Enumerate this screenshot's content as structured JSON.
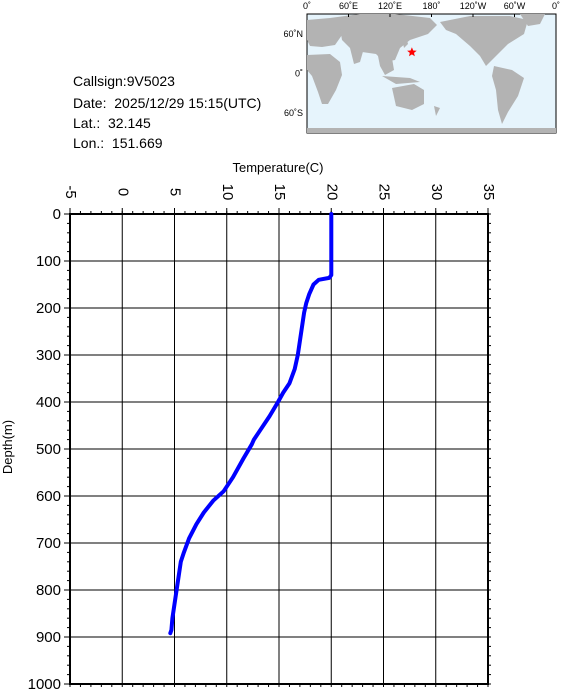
{
  "info": {
    "callsign": "Callsign:9V5023",
    "date": "Date:  2025/12/29 15:15(UTC)",
    "lat": "Lat.:  32.145",
    "lon": "Lon.:  151.669"
  },
  "map": {
    "top_labels": [
      "0˚",
      "60˚E",
      "120˚E",
      "180˚",
      "120˚W",
      "60˚W",
      "0˚"
    ],
    "left_labels": [
      "60˚N",
      "0˚",
      "60˚S"
    ],
    "ocean_color": "#e6f4fc",
    "land_color": "#b3b3b3",
    "marker_color": "#ff0000",
    "marker": {
      "lon": 151.669,
      "lat": 32.145
    }
  },
  "chart_data": {
    "type": "line",
    "xlabel": "Temperature(C)",
    "ylabel": "Depth(m)",
    "xlim": [
      -5,
      35
    ],
    "ylim": [
      0,
      1000
    ],
    "y_inverted": true,
    "grid": true,
    "x_ticks": [
      "-5",
      "0",
      "5",
      "10",
      "15",
      "20",
      "25",
      "30",
      "35"
    ],
    "y_ticks": [
      "0",
      "100",
      "200",
      "300",
      "400",
      "500",
      "600",
      "700",
      "800",
      "900",
      "1000"
    ],
    "line_color": "#0000ff",
    "series": [
      {
        "temperature": [
          20.0,
          20.0,
          20.0,
          19.8,
          18.8,
          18.3,
          17.9,
          17.6,
          17.4,
          17.2,
          17.0,
          16.8,
          16.5,
          16.0,
          15.4,
          14.9,
          14.1,
          13.2,
          12.6,
          12.4,
          11.6,
          10.6,
          9.7,
          8.7,
          7.8,
          7.1,
          6.4,
          5.9,
          5.6,
          5.4,
          5.2,
          5.0,
          4.8,
          4.7,
          4.6
        ],
        "depth": [
          0,
          50,
          130,
          136,
          140,
          150,
          170,
          190,
          210,
          240,
          270,
          300,
          330,
          360,
          380,
          400,
          430,
          460,
          480,
          490,
          520,
          560,
          590,
          610,
          635,
          660,
          690,
          720,
          740,
          770,
          800,
          830,
          860,
          885,
          892
        ]
      }
    ]
  }
}
